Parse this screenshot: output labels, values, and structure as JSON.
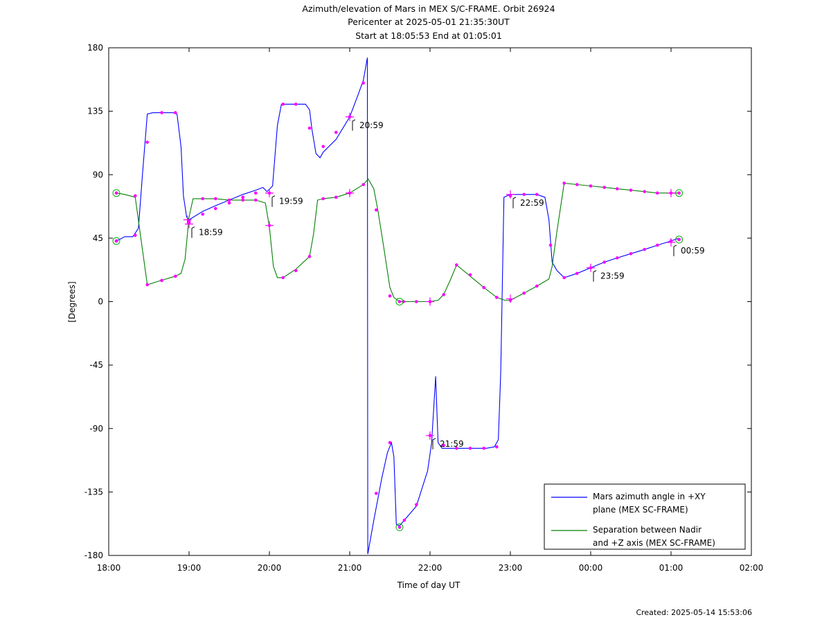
{
  "titles": {
    "line1": "Azimuth/elevation of Mars in MEX S/C-FRAME.  Orbit 26924",
    "line2": "Pericenter at 2025-05-01 21:35:30UT",
    "line3": "Start at 18:05:53 End at 01:05:01"
  },
  "footer": {
    "created": "Created: 2025-05-14 15:53:06"
  },
  "colors": {
    "azimuth": "#0000ff",
    "separation": "#008000",
    "markers": "#ff00ff",
    "endpoints": "#00b000"
  },
  "chart_data": {
    "type": "line",
    "xlabel": "Time of day UT",
    "ylabel": "[Degrees]",
    "xlim": [
      0,
      8
    ],
    "ylim": [
      -180,
      180
    ],
    "x_ticks": [
      {
        "v": 0,
        "label": "18:00"
      },
      {
        "v": 1,
        "label": "19:00"
      },
      {
        "v": 2,
        "label": "20:00"
      },
      {
        "v": 3,
        "label": "21:00"
      },
      {
        "v": 4,
        "label": "22:00"
      },
      {
        "v": 5,
        "label": "23:00"
      },
      {
        "v": 6,
        "label": "00:00"
      },
      {
        "v": 7,
        "label": "01:00"
      },
      {
        "v": 8,
        "label": "02:00"
      }
    ],
    "y_ticks": [
      {
        "v": 180,
        "label": "180"
      },
      {
        "v": 135,
        "label": "135"
      },
      {
        "v": 90,
        "label": "90"
      },
      {
        "v": 45,
        "label": "45"
      },
      {
        "v": 0,
        "label": "0"
      },
      {
        "v": -45,
        "label": "-45"
      },
      {
        "v": -90,
        "label": "-90"
      },
      {
        "v": -135,
        "label": "-135"
      },
      {
        "v": -180,
        "label": "-180"
      }
    ],
    "legend_position": "bottom-right",
    "series": [
      {
        "name": "Mars azimuth angle in +XY plane (MEX SC-FRAME)",
        "legend_lines": [
          "Mars azimuth angle in +XY",
          "plane (MEX SC-FRAME)"
        ],
        "color": "#0000ff",
        "points": [
          [
            0.097,
            43
          ],
          [
            0.2,
            46
          ],
          [
            0.3,
            46
          ],
          [
            0.37,
            52
          ],
          [
            0.42,
            90
          ],
          [
            0.48,
            133
          ],
          [
            0.55,
            134
          ],
          [
            0.65,
            134
          ],
          [
            0.8,
            134
          ],
          [
            0.85,
            133
          ],
          [
            0.9,
            110
          ],
          [
            0.93,
            75
          ],
          [
            0.97,
            60
          ],
          [
            1.0,
            58
          ],
          [
            1.17,
            64
          ],
          [
            1.33,
            68
          ],
          [
            1.5,
            72
          ],
          [
            1.67,
            76
          ],
          [
            1.83,
            79
          ],
          [
            1.92,
            81
          ],
          [
            1.97,
            78
          ],
          [
            2.04,
            82
          ],
          [
            2.1,
            125
          ],
          [
            2.15,
            140
          ],
          [
            2.3,
            140
          ],
          [
            2.45,
            140
          ],
          [
            2.5,
            136
          ],
          [
            2.53,
            122
          ],
          [
            2.58,
            105
          ],
          [
            2.63,
            102
          ],
          [
            2.67,
            106
          ],
          [
            2.83,
            115
          ],
          [
            3.0,
            131
          ],
          [
            3.1,
            146
          ],
          [
            3.17,
            157
          ],
          [
            3.22,
            173
          ],
          [
            3.225,
            -179
          ],
          [
            3.3,
            -155
          ],
          [
            3.4,
            -125
          ],
          [
            3.47,
            -107
          ],
          [
            3.52,
            -100
          ],
          [
            3.55,
            -110
          ],
          [
            3.58,
            -158
          ],
          [
            3.62,
            -159
          ],
          [
            3.68,
            -155
          ],
          [
            3.83,
            -145
          ],
          [
            3.97,
            -120
          ],
          [
            4.02,
            -100
          ],
          [
            4.07,
            -53
          ],
          [
            4.1,
            -100
          ],
          [
            4.15,
            -104
          ],
          [
            4.3,
            -104
          ],
          [
            4.5,
            -104
          ],
          [
            4.7,
            -104
          ],
          [
            4.8,
            -103
          ],
          [
            4.85,
            -98
          ],
          [
            4.88,
            -50
          ],
          [
            4.92,
            74
          ],
          [
            5.0,
            76
          ],
          [
            5.17,
            76
          ],
          [
            5.33,
            76
          ],
          [
            5.43,
            74
          ],
          [
            5.48,
            58
          ],
          [
            5.52,
            28
          ],
          [
            5.58,
            22
          ],
          [
            5.67,
            17
          ],
          [
            5.83,
            20
          ],
          [
            6.0,
            24
          ],
          [
            6.17,
            28
          ],
          [
            6.33,
            31
          ],
          [
            6.5,
            34
          ],
          [
            6.67,
            37
          ],
          [
            6.83,
            40
          ],
          [
            7.0,
            43
          ],
          [
            7.1,
            45
          ]
        ]
      },
      {
        "name": "Separation between Nadir and +Z axis (MEX SC-FRAME)",
        "legend_lines": [
          "Separation between Nadir",
          "and +Z axis (MEX SC-FRAME)"
        ],
        "color": "#008000",
        "points": [
          [
            0.097,
            77
          ],
          [
            0.2,
            76
          ],
          [
            0.33,
            74
          ],
          [
            0.4,
            45
          ],
          [
            0.48,
            12
          ],
          [
            0.65,
            15
          ],
          [
            0.83,
            18
          ],
          [
            0.9,
            20
          ],
          [
            0.95,
            30
          ],
          [
            1.0,
            60
          ],
          [
            1.05,
            73
          ],
          [
            1.17,
            73
          ],
          [
            1.33,
            73
          ],
          [
            1.5,
            72
          ],
          [
            1.67,
            72
          ],
          [
            1.83,
            72
          ],
          [
            1.95,
            70
          ],
          [
            2.0,
            53
          ],
          [
            2.05,
            25
          ],
          [
            2.1,
            17
          ],
          [
            2.17,
            17
          ],
          [
            2.33,
            23
          ],
          [
            2.5,
            32
          ],
          [
            2.55,
            48
          ],
          [
            2.6,
            72
          ],
          [
            2.67,
            73
          ],
          [
            2.83,
            74
          ],
          [
            3.0,
            77
          ],
          [
            3.17,
            83
          ],
          [
            3.23,
            87
          ],
          [
            3.3,
            80
          ],
          [
            3.35,
            65
          ],
          [
            3.42,
            40
          ],
          [
            3.5,
            10
          ],
          [
            3.55,
            3
          ],
          [
            3.62,
            0
          ],
          [
            3.67,
            0
          ],
          [
            3.83,
            0
          ],
          [
            4.0,
            0
          ],
          [
            4.1,
            1
          ],
          [
            4.17,
            5
          ],
          [
            4.25,
            15
          ],
          [
            4.33,
            26
          ],
          [
            4.5,
            18
          ],
          [
            4.67,
            10
          ],
          [
            4.83,
            3
          ],
          [
            4.93,
            1
          ],
          [
            5.0,
            1
          ],
          [
            5.17,
            6
          ],
          [
            5.33,
            11
          ],
          [
            5.48,
            16
          ],
          [
            5.52,
            25
          ],
          [
            5.58,
            50
          ],
          [
            5.67,
            84
          ],
          [
            5.83,
            83
          ],
          [
            6.0,
            82
          ],
          [
            6.17,
            81
          ],
          [
            6.33,
            80
          ],
          [
            6.5,
            79
          ],
          [
            6.67,
            78
          ],
          [
            6.83,
            77
          ],
          [
            7.0,
            77
          ],
          [
            7.1,
            77
          ]
        ]
      }
    ],
    "markers": [
      [
        0.095,
        43
      ],
      [
        0.33,
        47
      ],
      [
        0.48,
        113
      ],
      [
        0.66,
        134
      ],
      [
        0.83,
        134
      ],
      [
        1.0,
        57
      ],
      [
        1.17,
        62
      ],
      [
        1.33,
        66
      ],
      [
        1.5,
        70
      ],
      [
        1.67,
        74
      ],
      [
        1.83,
        77
      ],
      [
        2.0,
        77
      ],
      [
        2.17,
        140
      ],
      [
        2.33,
        140
      ],
      [
        2.5,
        123
      ],
      [
        2.67,
        110
      ],
      [
        2.83,
        120
      ],
      [
        3.0,
        131
      ],
      [
        3.17,
        155
      ],
      [
        3.33,
        -136
      ],
      [
        3.5,
        -100
      ],
      [
        3.68,
        -155
      ],
      [
        3.83,
        -144
      ],
      [
        4.0,
        -95
      ],
      [
        4.17,
        -102
      ],
      [
        4.33,
        -104
      ],
      [
        4.5,
        -104
      ],
      [
        4.67,
        -104
      ],
      [
        4.83,
        -103
      ],
      [
        5.0,
        75
      ],
      [
        5.17,
        76
      ],
      [
        5.33,
        76
      ],
      [
        5.5,
        40
      ],
      [
        5.67,
        17
      ],
      [
        5.83,
        20
      ],
      [
        6.0,
        24
      ],
      [
        6.17,
        28
      ],
      [
        6.33,
        31
      ],
      [
        6.5,
        34
      ],
      [
        6.67,
        37
      ],
      [
        6.83,
        40
      ],
      [
        7.0,
        43
      ],
      [
        7.1,
        44
      ],
      [
        0.33,
        75
      ],
      [
        0.48,
        12
      ],
      [
        0.66,
        15
      ],
      [
        0.83,
        18
      ],
      [
        1.0,
        56
      ],
      [
        1.17,
        73
      ],
      [
        1.33,
        73
      ],
      [
        1.5,
        72
      ],
      [
        1.67,
        72
      ],
      [
        1.83,
        72
      ],
      [
        2.0,
        54
      ],
      [
        2.17,
        17
      ],
      [
        2.33,
        22
      ],
      [
        2.5,
        32
      ],
      [
        2.67,
        73
      ],
      [
        2.83,
        74
      ],
      [
        3.0,
        77
      ],
      [
        3.17,
        83
      ],
      [
        3.33,
        65
      ],
      [
        3.5,
        4
      ],
      [
        3.67,
        0
      ],
      [
        3.83,
        0
      ],
      [
        4.0,
        0
      ],
      [
        4.17,
        5
      ],
      [
        4.33,
        26
      ],
      [
        4.5,
        19
      ],
      [
        4.67,
        10
      ],
      [
        4.83,
        3
      ],
      [
        5.0,
        1
      ],
      [
        5.17,
        6
      ],
      [
        5.33,
        11
      ],
      [
        5.67,
        84
      ],
      [
        5.83,
        83
      ],
      [
        6.0,
        82
      ],
      [
        6.17,
        81
      ],
      [
        6.33,
        80
      ],
      [
        6.5,
        79
      ],
      [
        6.67,
        78
      ],
      [
        6.83,
        77
      ],
      [
        7.0,
        77
      ]
    ],
    "hour_crosses": [
      [
        0.98,
        58
      ],
      [
        1.0,
        55
      ],
      [
        2.0,
        77
      ],
      [
        2.0,
        54
      ],
      [
        3.0,
        131
      ],
      [
        3.0,
        77
      ],
      [
        4.0,
        -95
      ],
      [
        4.0,
        0
      ],
      [
        5.0,
        76
      ],
      [
        5.0,
        2
      ],
      [
        6.0,
        24
      ],
      [
        7.0,
        77
      ],
      [
        7.0,
        42
      ]
    ],
    "endpoint_circles": [
      [
        0.095,
        77
      ],
      [
        0.095,
        43
      ],
      [
        3.62,
        0
      ],
      [
        3.62,
        -160
      ],
      [
        7.1,
        77
      ],
      [
        7.1,
        44
      ]
    ],
    "hour_labels": [
      {
        "x": 1.0,
        "y": 55,
        "label": "18:59"
      },
      {
        "x": 2.0,
        "y": 77,
        "label": "19:59"
      },
      {
        "x": 3.0,
        "y": 131,
        "label": "20:59"
      },
      {
        "x": 4.0,
        "y": -95,
        "label": "21:59"
      },
      {
        "x": 5.0,
        "y": 76,
        "label": "22:59"
      },
      {
        "x": 6.0,
        "y": 24,
        "label": "23:59"
      },
      {
        "x": 7.0,
        "y": 42,
        "label": "00:59"
      }
    ]
  }
}
